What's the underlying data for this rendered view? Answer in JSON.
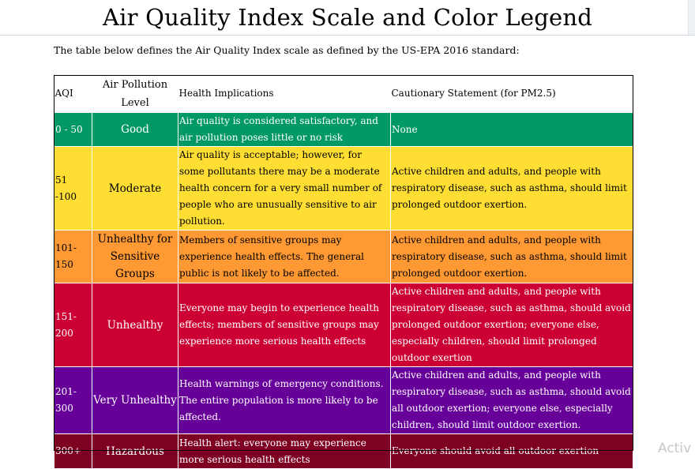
{
  "page": {
    "title": "Air Quality Index Scale and Color Legend",
    "intro": "The table below defines the Air Quality Index scale as defined by the US-EPA 2016 standard:",
    "watermark": "Activ"
  },
  "table": {
    "headers": {
      "aqi": "AQI",
      "level": "Air Pollution Level",
      "health": "Health Implications",
      "caution": "Cautionary Statement (for PM2.5)"
    },
    "rows": [
      {
        "aqi": "0 - 50",
        "level": "Good",
        "health": "Air quality is considered satisfactory, and air pollution poses little or no risk",
        "caution": "None",
        "color": "#009966"
      },
      {
        "aqi": "51 -100",
        "level": "Moderate",
        "health": "Air quality is acceptable; however, for some pollutants there may be a moderate health concern for a very small number of people who are unusually sensitive to air pollution.",
        "caution": "Active children and adults, and people with respiratory disease, such as asthma, should limit prolonged outdoor exertion.",
        "color": "#ffde33"
      },
      {
        "aqi": "101-150",
        "level": "Unhealthy for Sensitive Groups",
        "health": "Members of sensitive groups may experience health effects. The general public is not likely to be affected.",
        "caution": "Active children and adults, and people with respiratory disease, such as asthma, should limit prolonged outdoor exertion.",
        "color": "#ff9933"
      },
      {
        "aqi": "151-200",
        "level": "Unhealthy",
        "health": "Everyone may begin to experience health effects; members of sensitive groups may experience more serious health effects",
        "caution": "Active children and adults, and people with respiratory disease, such as asthma, should avoid prolonged outdoor exertion; everyone else, especially children, should limit prolonged outdoor exertion",
        "color": "#cc0033"
      },
      {
        "aqi": "201-300",
        "level": "Very Unhealthy",
        "health": "Health warnings of emergency conditions. The entire population is more likely to be affected.",
        "caution": "Active children and adults, and people with respiratory disease, such as asthma, should avoid all outdoor exertion; everyone else, especially children, should limit outdoor exertion.",
        "color": "#660099"
      },
      {
        "aqi": "300+",
        "level": "Hazardous",
        "health": "Health alert: everyone may experience more serious health effects",
        "caution": "Everyone should avoid all outdoor exertion",
        "color": "#7e0023"
      }
    ]
  }
}
